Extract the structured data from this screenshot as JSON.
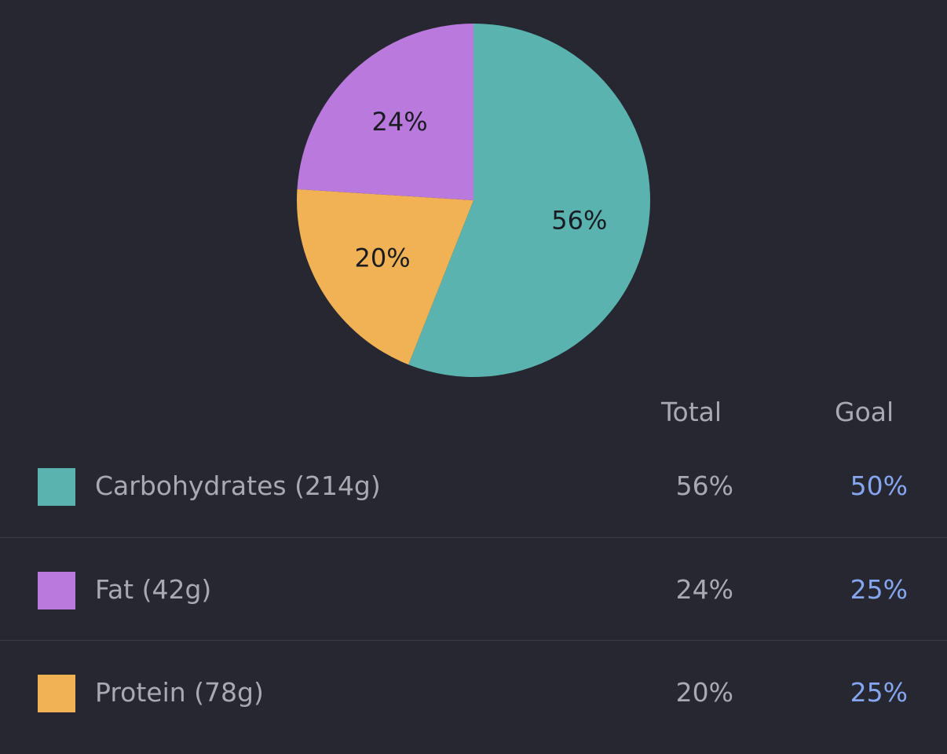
{
  "chart_data": {
    "type": "pie",
    "slices": [
      {
        "label": "56%",
        "value": 56,
        "color": "#5ab3ae"
      },
      {
        "label": "20%",
        "value": 20,
        "color": "#f0b254"
      },
      {
        "label": "24%",
        "value": 24,
        "color": "#ba79dc"
      }
    ]
  },
  "headers": {
    "total": "Total",
    "goal": "Goal"
  },
  "goal_color": "#86a6f0",
  "macros": [
    {
      "label": "Carbohydrates (214g)",
      "total": "56%",
      "goal": "50%",
      "color": "#5ab3ae"
    },
    {
      "label": "Fat (42g)",
      "total": "24%",
      "goal": "25%",
      "color": "#ba79dc"
    },
    {
      "label": "Protein (78g)",
      "total": "20%",
      "goal": "25%",
      "color": "#f0b254"
    }
  ]
}
